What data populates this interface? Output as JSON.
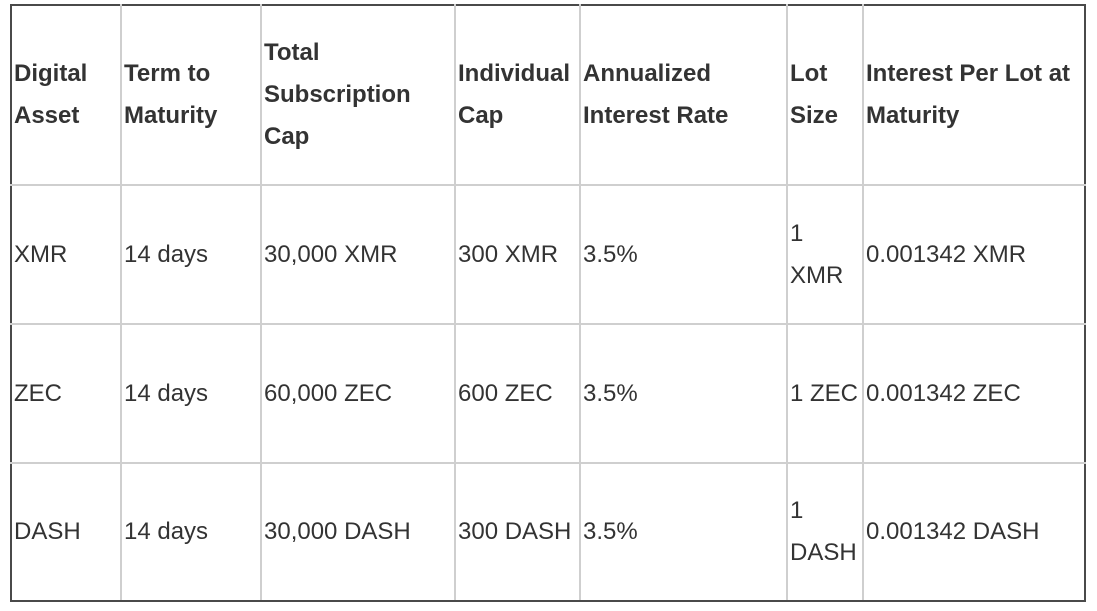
{
  "table": {
    "columns": [
      "Digital Asset",
      "Term to Maturity",
      "Total Subscription Cap",
      "Individual Cap",
      "Annualized Interest Rate",
      "Lot Size",
      "Interest Per Lot at Maturity"
    ],
    "rows": [
      [
        "XMR",
        "14 days",
        "30,000 XMR",
        "300 XMR",
        "3.5%",
        "1 XMR",
        "0.001342 XMR"
      ],
      [
        "ZEC",
        "14 days",
        "60,000 ZEC",
        "600 ZEC",
        "3.5%",
        "1 ZEC",
        "0.001342 ZEC"
      ],
      [
        "DASH",
        "14 days",
        "30,000 DASH",
        "300 DASH",
        "3.5%",
        "1 DASH",
        "0.001342 DASH"
      ]
    ]
  }
}
